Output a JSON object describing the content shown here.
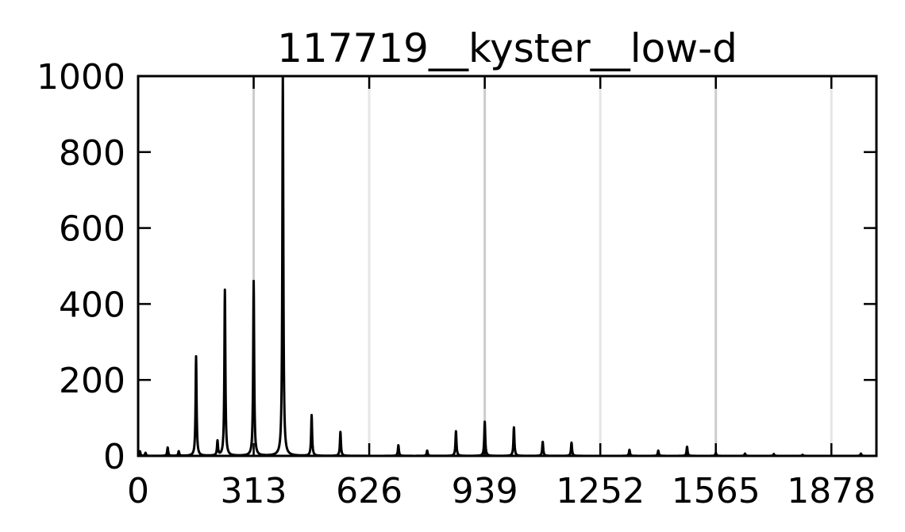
{
  "chart_data": {
    "type": "line",
    "title": "117719__kyster__low-d",
    "xlabel": "",
    "ylabel": "",
    "xlim": [
      0,
      2000
    ],
    "ylim": [
      0,
      1000
    ],
    "xticks": [
      0,
      313,
      626,
      939,
      1252,
      1565,
      1878
    ],
    "xtick_labels": [
      "0",
      "313",
      "626",
      "939",
      "1252",
      "1565",
      "1878"
    ],
    "yticks": [
      0,
      200,
      400,
      600,
      800,
      1000
    ],
    "ytick_labels": [
      "0",
      "200",
      "400",
      "600",
      "800",
      "1000"
    ],
    "grid": false,
    "legend": "none",
    "line_color": "#000000",
    "reference_lines": [
      {
        "x": 313,
        "color": "#cccccc"
      },
      {
        "x": 626,
        "color": "#e6e6e6"
      },
      {
        "x": 939,
        "color": "#cccccc"
      },
      {
        "x": 1252,
        "color": "#e6e6e6"
      },
      {
        "x": 1565,
        "color": "#cccccc"
      },
      {
        "x": 1878,
        "color": "#e6e6e6"
      }
    ],
    "series": [
      {
        "peaks": [
          {
            "x": 5,
            "y": 12
          },
          {
            "x": 20,
            "y": 8
          },
          {
            "x": 80,
            "y": 22
          },
          {
            "x": 110,
            "y": 12
          },
          {
            "x": 157,
            "y": 262
          },
          {
            "x": 215,
            "y": 38
          },
          {
            "x": 235,
            "y": 437
          },
          {
            "x": 313,
            "y": 460
          },
          {
            "x": 392,
            "y": 1000
          },
          {
            "x": 470,
            "y": 107
          },
          {
            "x": 548,
            "y": 63
          },
          {
            "x": 705,
            "y": 28
          },
          {
            "x": 783,
            "y": 14
          },
          {
            "x": 861,
            "y": 65
          },
          {
            "x": 939,
            "y": 90
          },
          {
            "x": 1018,
            "y": 75
          },
          {
            "x": 1096,
            "y": 37
          },
          {
            "x": 1174,
            "y": 35
          },
          {
            "x": 1331,
            "y": 16
          },
          {
            "x": 1409,
            "y": 14
          },
          {
            "x": 1487,
            "y": 24
          },
          {
            "x": 1565,
            "y": 8
          },
          {
            "x": 1644,
            "y": 6
          },
          {
            "x": 1722,
            "y": 5
          },
          {
            "x": 1800,
            "y": 3
          },
          {
            "x": 1958,
            "y": 6
          }
        ]
      }
    ]
  }
}
